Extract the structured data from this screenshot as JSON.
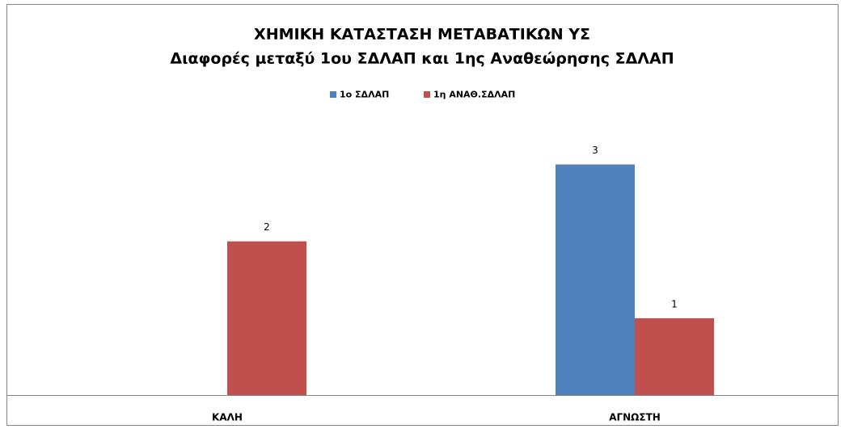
{
  "chart_data": {
    "type": "bar",
    "title": "ΧΗΜΙΚΗ ΚΑΤΑΣΤΑΣΗ ΜΕΤΑΒΑΤΙΚΩΝ ΥΣ",
    "subtitle": "Διαφορές μεταξύ 1ου ΣΔΛΑΠ και 1ης Αναθεώρησης ΣΔΛΑΠ",
    "categories": [
      "ΚΑΛΗ",
      "ΑΓΝΩΣΤΗ"
    ],
    "series": [
      {
        "name": "1ο ΣΔΛΑΠ",
        "color": "#4f81bd",
        "values": [
          null,
          3
        ]
      },
      {
        "name": "1η ΑΝΑΘ.ΣΔΛΑΠ",
        "color": "#c0504d",
        "values": [
          2,
          1
        ]
      }
    ],
    "ylim": [
      0,
      3.5
    ],
    "legend": "top"
  }
}
